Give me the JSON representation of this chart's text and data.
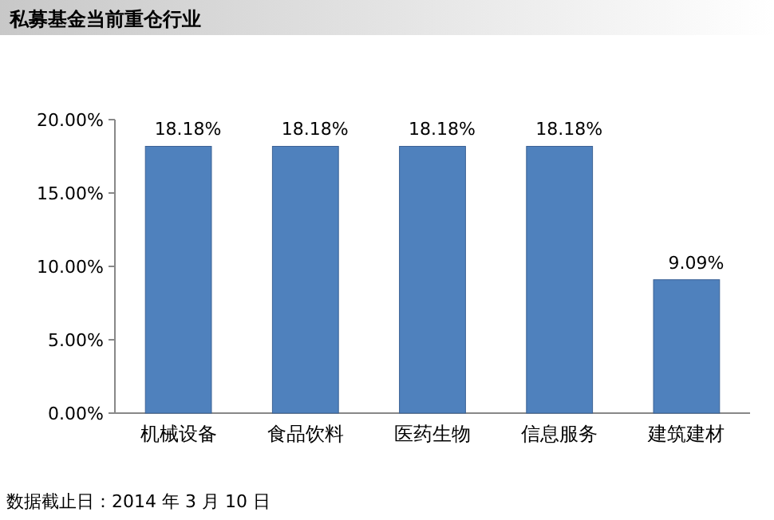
{
  "chart_data": {
    "type": "bar",
    "title": "私募基金当前重仓行业",
    "categories": [
      "机械设备",
      "食品饮料",
      "医药生物",
      "信息服务",
      "建筑建材"
    ],
    "values": [
      18.18,
      18.18,
      18.18,
      18.18,
      9.09
    ],
    "color": "#4f81bd",
    "ylim": [
      0,
      20
    ],
    "yticks": [
      {
        "value": 0,
        "label": "0.00%"
      },
      {
        "value": 5,
        "label": "5.00%"
      },
      {
        "value": 10,
        "label": "10.00%"
      },
      {
        "value": 15,
        "label": "15.00%"
      },
      {
        "value": 20,
        "label": "20.00%"
      }
    ],
    "value_labels": [
      "18.18%",
      "18.18%",
      "18.18%",
      "18.18%",
      "9.09%"
    ],
    "grid": false,
    "annotations": [
      "数据截止日：2014 年 3 月 10 日"
    ]
  }
}
